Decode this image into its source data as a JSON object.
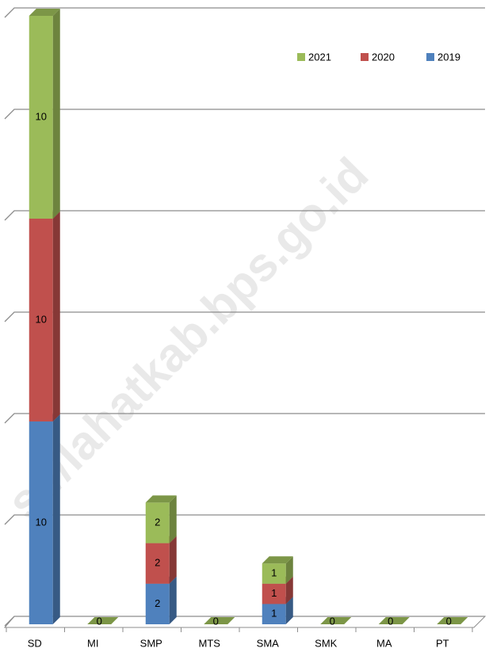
{
  "chart_data": {
    "type": "bar3d_stacked",
    "categories": [
      "SD",
      "MI",
      "SMP",
      "MTS",
      "SMA",
      "SMK",
      "MA",
      "PT"
    ],
    "series": [
      {
        "name": "2019",
        "color": "#4f81bd",
        "values": [
          10,
          0,
          2,
          0,
          1,
          0,
          0,
          0
        ]
      },
      {
        "name": "2020",
        "color": "#c0504d",
        "values": [
          10,
          0,
          2,
          0,
          1,
          0,
          0,
          0
        ]
      },
      {
        "name": "2021",
        "color": "#9bbb59",
        "values": [
          10,
          0,
          2,
          0,
          1,
          0,
          0,
          0
        ]
      }
    ],
    "ylim": [
      0,
      30
    ],
    "yticks": [
      0,
      5,
      10,
      15,
      20,
      25,
      30
    ],
    "grid": true,
    "legend": "top-right",
    "watermark": "s://lahatkab.bps.go.id"
  }
}
